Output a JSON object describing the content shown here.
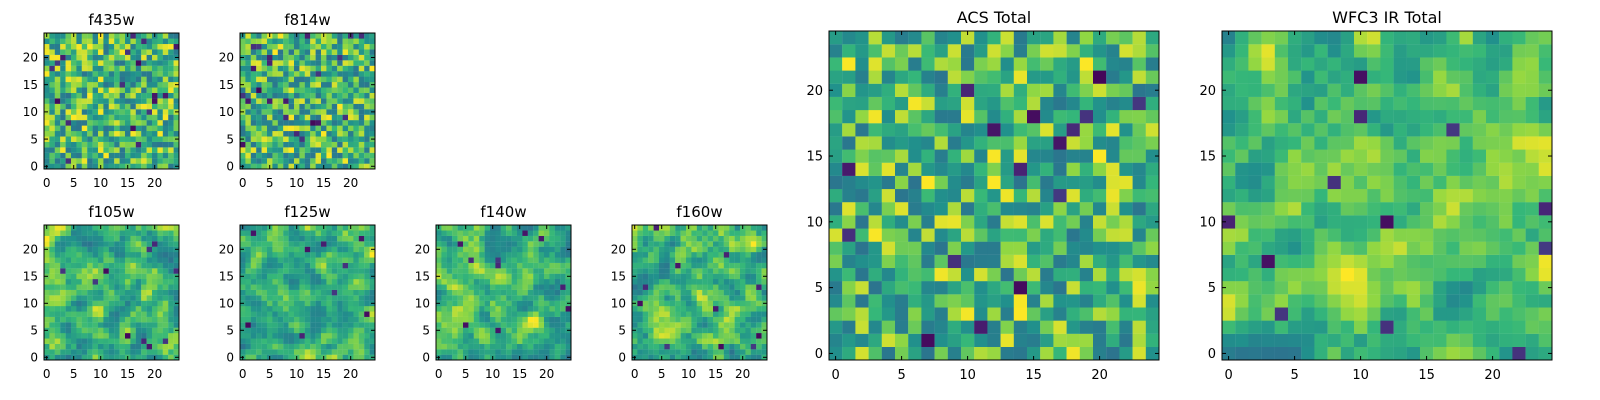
{
  "chart_data": [
    {
      "type": "heatmap",
      "title": "f435w",
      "grid_size": [
        25,
        25
      ],
      "x_ticks": [
        0,
        5,
        10,
        15,
        20
      ],
      "y_ticks": [
        0,
        5,
        10,
        15,
        20
      ],
      "xlim": [
        -0.5,
        24.5
      ],
      "ylim": [
        -0.5,
        24.5
      ],
      "colormap": "viridis",
      "smooth": 0,
      "seed": 11,
      "dark_pixels": 18
    },
    {
      "type": "heatmap",
      "title": "f814w",
      "grid_size": [
        25,
        25
      ],
      "x_ticks": [
        0,
        5,
        10,
        15,
        20
      ],
      "y_ticks": [
        0,
        5,
        10,
        15,
        20
      ],
      "xlim": [
        -0.5,
        24.5
      ],
      "ylim": [
        -0.5,
        24.5
      ],
      "colormap": "viridis",
      "smooth": 0,
      "seed": 23,
      "dark_pixels": 22
    },
    {
      "type": "heatmap",
      "title": "f105w",
      "grid_size": [
        25,
        25
      ],
      "x_ticks": [
        0,
        5,
        10,
        15,
        20
      ],
      "y_ticks": [
        0,
        5,
        10,
        15,
        20
      ],
      "xlim": [
        -0.5,
        24.5
      ],
      "ylim": [
        -0.5,
        24.5
      ],
      "colormap": "viridis",
      "smooth": 1,
      "seed": 37,
      "dark_pixels": 10
    },
    {
      "type": "heatmap",
      "title": "f125w",
      "grid_size": [
        25,
        25
      ],
      "x_ticks": [
        0,
        5,
        10,
        15,
        20
      ],
      "y_ticks": [
        0,
        5,
        10,
        15,
        20
      ],
      "xlim": [
        -0.5,
        24.5
      ],
      "ylim": [
        -0.5,
        24.5
      ],
      "colormap": "viridis",
      "smooth": 1,
      "seed": 41,
      "dark_pixels": 9
    },
    {
      "type": "heatmap",
      "title": "f140w",
      "grid_size": [
        25,
        25
      ],
      "x_ticks": [
        0,
        5,
        10,
        15,
        20
      ],
      "y_ticks": [
        0,
        5,
        10,
        15,
        20
      ],
      "xlim": [
        -0.5,
        24.5
      ],
      "ylim": [
        -0.5,
        24.5
      ],
      "colormap": "viridis",
      "smooth": 1,
      "seed": 53,
      "dark_pixels": 10
    },
    {
      "type": "heatmap",
      "title": "f160w",
      "grid_size": [
        25,
        25
      ],
      "x_ticks": [
        0,
        5,
        10,
        15,
        20
      ],
      "y_ticks": [
        0,
        5,
        10,
        15,
        20
      ],
      "xlim": [
        -0.5,
        24.5
      ],
      "ylim": [
        -0.5,
        24.5
      ],
      "colormap": "viridis",
      "smooth": 1,
      "seed": 67,
      "dark_pixels": 11
    },
    {
      "type": "heatmap",
      "title": "ACS Total",
      "grid_size": [
        25,
        25
      ],
      "x_ticks": [
        0,
        5,
        10,
        15,
        20
      ],
      "y_ticks": [
        0,
        5,
        10,
        15,
        20
      ],
      "xlim": [
        -0.5,
        24.5
      ],
      "ylim": [
        -0.5,
        24.5
      ],
      "colormap": "viridis",
      "smooth": 0,
      "seed": 79,
      "dark_pixels": 16
    },
    {
      "type": "heatmap",
      "title": "WFC3 IR Total",
      "grid_size": [
        25,
        25
      ],
      "x_ticks": [
        0,
        5,
        10,
        15,
        20
      ],
      "y_ticks": [
        0,
        5,
        10,
        15,
        20
      ],
      "xlim": [
        -0.5,
        24.5
      ],
      "ylim": [
        -0.5,
        24.5
      ],
      "colormap": "viridis",
      "smooth": 1,
      "seed": 97,
      "dark_pixels": 12
    }
  ]
}
